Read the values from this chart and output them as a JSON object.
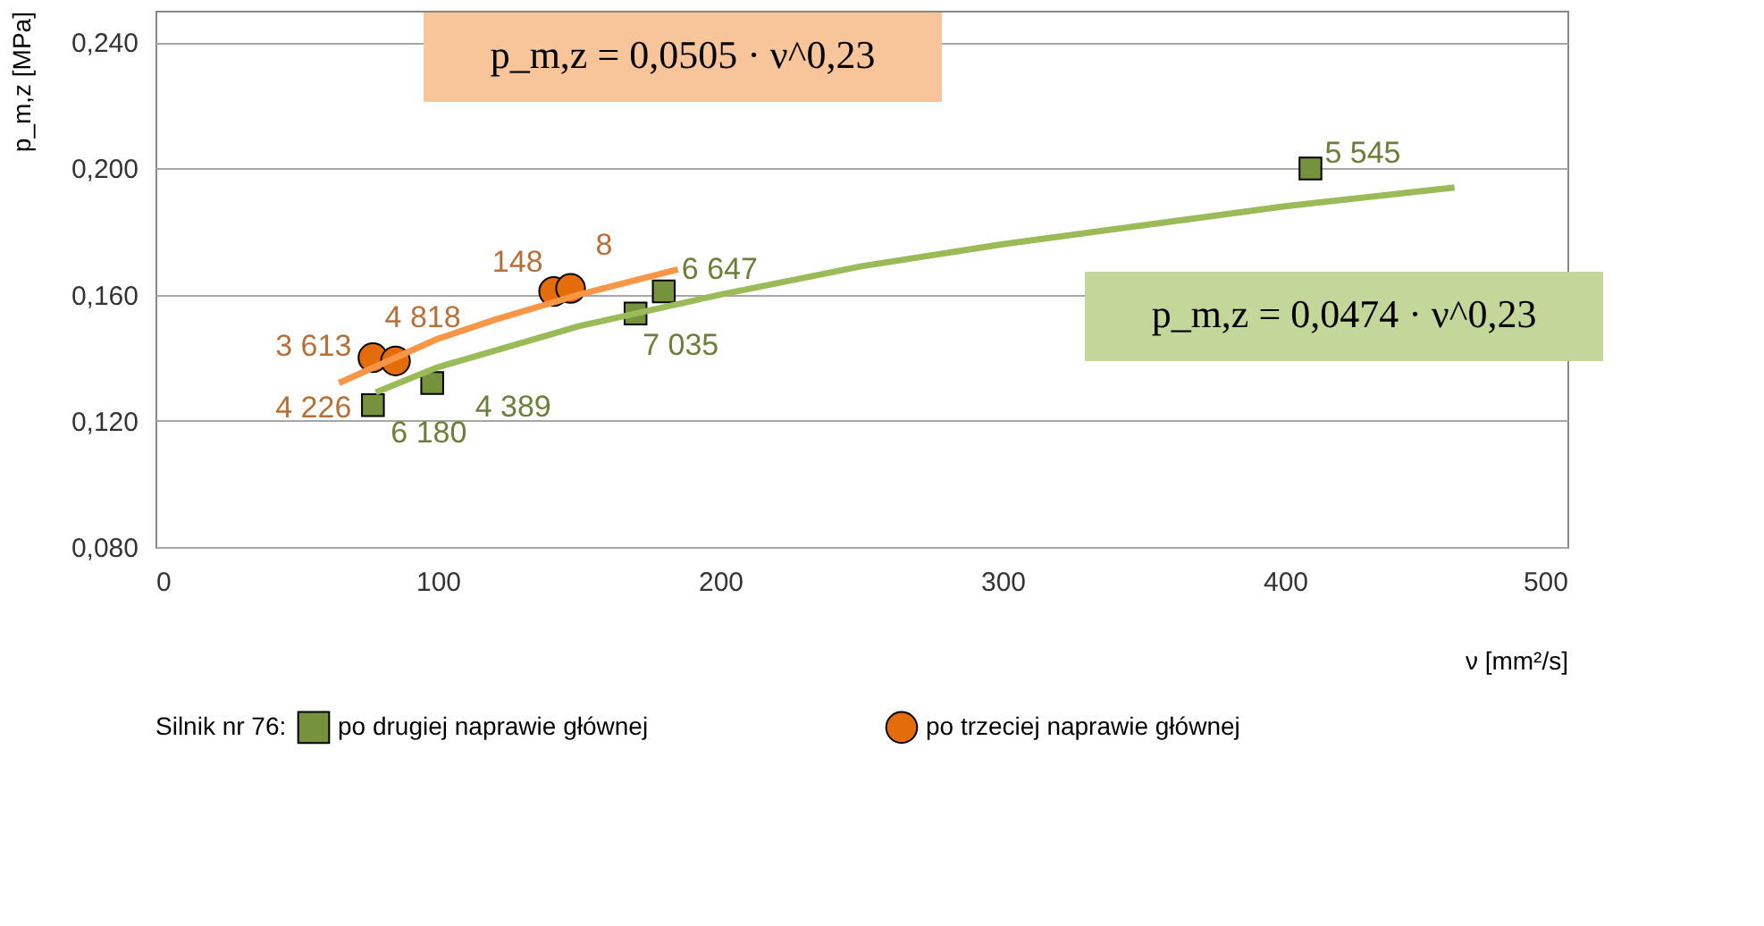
{
  "chart_data": {
    "type": "scatter",
    "xlabel": "ν [mm²/s]",
    "ylabel": "p_m,z [MPa]",
    "legend_title": "Silnik nr 76:",
    "xlim": [
      0,
      500
    ],
    "xticks": [
      0,
      100,
      200,
      300,
      400,
      500
    ],
    "ylim": [
      0.08,
      0.25
    ],
    "yticks": [
      {
        "value": 0.08,
        "label": "0,080"
      },
      {
        "value": 0.12,
        "label": "0,120"
      },
      {
        "value": 0.16,
        "label": "0,160"
      },
      {
        "value": 0.2,
        "label": "0,200"
      },
      {
        "value": 0.24,
        "label": "0,240"
      }
    ],
    "grid": "y",
    "legend": "bottom",
    "series": [
      {
        "name": "po drugiej naprawie głównej",
        "type": "scatter",
        "marker": "square",
        "color": "#76923c",
        "x": [
          77,
          98,
          170,
          180,
          409
        ],
        "values": [
          0.125,
          0.132,
          0.154,
          0.161,
          0.2
        ]
      },
      {
        "name": "po  trzeciej naprawie głównej",
        "type": "scatter",
        "marker": "circle",
        "color": "#e46c0a",
        "x": [
          77,
          85,
          141,
          147
        ],
        "values": [
          0.14,
          0.139,
          0.161,
          0.162
        ]
      },
      {
        "type": "line",
        "color": "#9bbb59",
        "x": [
          78,
          100,
          150,
          200,
          250,
          300,
          350,
          400,
          460
        ],
        "values": [
          0.129,
          0.137,
          0.15,
          0.16,
          0.169,
          0.176,
          0.182,
          0.188,
          0.194
        ]
      },
      {
        "type": "line",
        "color": "#f79646",
        "x": [
          65,
          80,
          100,
          120,
          150,
          185
        ],
        "values": [
          0.132,
          0.138,
          0.146,
          0.152,
          0.16,
          0.168
        ]
      }
    ],
    "annotations": [
      "p_m,z = 0,0505 · ν^0,23",
      "p_m,z = 0,0474 · ν^0,23",
      {
        "text": "6 180",
        "x": 77,
        "y": 0.125
      },
      {
        "text": "4 389",
        "x": 98,
        "y": 0.132
      },
      {
        "text": "7 035",
        "x": 170,
        "y": 0.154
      },
      {
        "text": "6 647",
        "x": 180,
        "y": 0.161
      },
      {
        "text": "5 545",
        "x": 409,
        "y": 0.2
      },
      {
        "text": "3 613",
        "x": 77,
        "y": 0.14
      },
      {
        "text": "4 818",
        "x": 85,
        "y": 0.139
      },
      {
        "text": "148",
        "x": 141,
        "y": 0.161
      },
      {
        "text": "8",
        "x": 147,
        "y": 0.162
      },
      {
        "text": "4 226",
        "x": 77,
        "y": 0.125
      }
    ]
  }
}
